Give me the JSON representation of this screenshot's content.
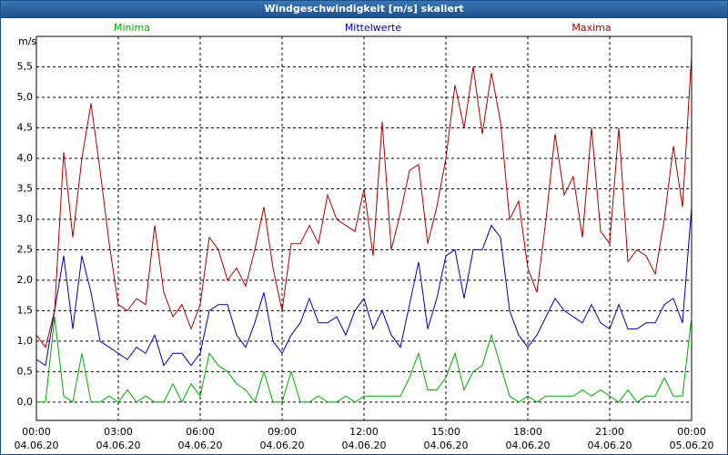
{
  "chart_data": {
    "type": "line",
    "title": "Windgeschwindigkeit [m/s] skaliert",
    "y_label": "m/s",
    "x": [
      "04.06.20 00:00",
      "04.06.20 00:20",
      "04.06.20 00:40",
      "04.06.20 01:00",
      "04.06.20 01:20",
      "04.06.20 01:40",
      "04.06.20 02:00",
      "04.06.20 02:20",
      "04.06.20 02:40",
      "04.06.20 03:00",
      "04.06.20 03:20",
      "04.06.20 03:40",
      "04.06.20 04:00",
      "04.06.20 04:20",
      "04.06.20 04:40",
      "04.06.20 05:00",
      "04.06.20 05:20",
      "04.06.20 05:40",
      "04.06.20 06:00",
      "04.06.20 06:20",
      "04.06.20 06:40",
      "04.06.20 07:00",
      "04.06.20 07:20",
      "04.06.20 07:40",
      "04.06.20 08:00",
      "04.06.20 08:20",
      "04.06.20 08:40",
      "04.06.20 09:00",
      "04.06.20 09:20",
      "04.06.20 09:40",
      "04.06.20 10:00",
      "04.06.20 10:20",
      "04.06.20 10:40",
      "04.06.20 11:00",
      "04.06.20 11:20",
      "04.06.20 11:40",
      "04.06.20 12:00",
      "04.06.20 12:20",
      "04.06.20 12:40",
      "04.06.20 13:00",
      "04.06.20 13:20",
      "04.06.20 13:40",
      "04.06.20 14:00",
      "04.06.20 14:20",
      "04.06.20 14:40",
      "04.06.20 15:00",
      "04.06.20 15:20",
      "04.06.20 15:40",
      "04.06.20 16:00",
      "04.06.20 16:20",
      "04.06.20 16:40",
      "04.06.20 17:00",
      "04.06.20 17:20",
      "04.06.20 17:40",
      "04.06.20 18:00",
      "04.06.20 18:20",
      "04.06.20 18:40",
      "04.06.20 19:00",
      "04.06.20 19:20",
      "04.06.20 19:40",
      "04.06.20 20:00",
      "04.06.20 20:20",
      "04.06.20 20:40",
      "04.06.20 21:00",
      "04.06.20 21:20",
      "04.06.20 21:40",
      "04.06.20 22:00",
      "04.06.20 22:20",
      "04.06.20 22:40",
      "04.06.20 23:00",
      "04.06.20 23:20",
      "04.06.20 23:40",
      "05.06.20 00:00"
    ],
    "series": [
      {
        "name": "Minima",
        "color": "#00aa00",
        "values": [
          0.0,
          0.0,
          1.4,
          0.1,
          0.0,
          0.8,
          0.0,
          0.0,
          0.1,
          0.0,
          0.2,
          0.0,
          0.1,
          0.0,
          0.0,
          0.3,
          0.0,
          0.3,
          0.1,
          0.8,
          0.6,
          0.5,
          0.3,
          0.2,
          0.0,
          0.5,
          0.0,
          0.0,
          0.5,
          0.0,
          0.0,
          0.1,
          0.0,
          0.0,
          0.1,
          0.0,
          0.1,
          0.1,
          0.1,
          0.1,
          0.1,
          0.4,
          0.8,
          0.2,
          0.2,
          0.4,
          0.8,
          0.2,
          0.5,
          0.6,
          1.1,
          0.6,
          0.1,
          0.0,
          0.1,
          0.0,
          0.1,
          0.1,
          0.1,
          0.1,
          0.2,
          0.1,
          0.2,
          0.1,
          0.0,
          0.2,
          0.0,
          0.1,
          0.1,
          0.4,
          0.1,
          0.1,
          1.4
        ]
      },
      {
        "name": "Mittelwerte",
        "color": "#0000aa",
        "values": [
          0.7,
          0.6,
          1.5,
          2.4,
          1.2,
          2.4,
          1.8,
          1.0,
          0.9,
          0.8,
          0.7,
          0.9,
          0.8,
          1.1,
          0.6,
          0.8,
          0.8,
          0.6,
          0.8,
          1.5,
          1.6,
          1.6,
          1.1,
          0.9,
          1.3,
          1.8,
          1.0,
          0.8,
          1.1,
          1.3,
          1.7,
          1.3,
          1.3,
          1.4,
          1.1,
          1.5,
          1.7,
          1.2,
          1.5,
          1.1,
          0.9,
          1.6,
          2.3,
          1.2,
          1.7,
          2.4,
          2.5,
          1.7,
          2.5,
          2.5,
          2.9,
          2.7,
          1.5,
          1.1,
          0.9,
          1.1,
          1.4,
          1.7,
          1.5,
          1.4,
          1.3,
          1.6,
          1.3,
          1.2,
          1.6,
          1.2,
          1.2,
          1.3,
          1.3,
          1.6,
          1.7,
          1.3,
          3.2
        ]
      },
      {
        "name": "Maxima",
        "color": "#aa0000",
        "values": [
          1.1,
          0.9,
          1.5,
          4.1,
          2.7,
          4.0,
          4.9,
          3.8,
          2.6,
          1.6,
          1.5,
          1.7,
          1.6,
          2.9,
          1.8,
          1.4,
          1.6,
          1.2,
          1.6,
          2.7,
          2.5,
          2.0,
          2.2,
          1.9,
          2.5,
          3.2,
          2.2,
          1.5,
          2.6,
          2.6,
          2.9,
          2.6,
          3.4,
          3.0,
          2.9,
          2.8,
          3.5,
          2.4,
          4.6,
          2.5,
          3.1,
          3.8,
          3.9,
          2.6,
          3.2,
          4.0,
          5.2,
          4.5,
          5.5,
          4.4,
          5.4,
          4.6,
          3.0,
          3.3,
          2.2,
          1.8,
          3.0,
          4.4,
          3.4,
          3.7,
          2.7,
          4.5,
          2.8,
          2.6,
          4.5,
          2.3,
          2.5,
          2.4,
          2.1,
          3.0,
          4.2,
          3.2,
          5.7
        ]
      }
    ],
    "xlim": [
      "04.06.20 00:00",
      "05.06.20 00:00"
    ],
    "xticks": [
      {
        "value": "04.06.20 00:00",
        "label": [
          "00:00",
          "04.06.20"
        ]
      },
      {
        "value": "04.06.20 03:00",
        "label": [
          "03:00",
          "04.06.20"
        ]
      },
      {
        "value": "04.06.20 06:00",
        "label": [
          "06:00",
          "04.06.20"
        ]
      },
      {
        "value": "04.06.20 09:00",
        "label": [
          "09:00",
          "04.06.20"
        ]
      },
      {
        "value": "04.06.20 12:00",
        "label": [
          "12:00",
          "04.06.20"
        ]
      },
      {
        "value": "04.06.20 15:00",
        "label": [
          "15:00",
          "04.06.20"
        ]
      },
      {
        "value": "04.06.20 18:00",
        "label": [
          "18:00",
          "04.06.20"
        ]
      },
      {
        "value": "04.06.20 21:00",
        "label": [
          "21:00",
          "04.06.20"
        ]
      },
      {
        "value": "05.06.20 00:00",
        "label": [
          "00:00",
          "05.06.20"
        ]
      }
    ],
    "ylim": [
      -0.3,
      6.0
    ],
    "yticks": [
      {
        "value": 0,
        "label": "0,0"
      },
      {
        "value": 0.5,
        "label": "0,5"
      },
      {
        "value": 1,
        "label": "1,0"
      },
      {
        "value": 1.5,
        "label": "1,5"
      },
      {
        "value": 2,
        "label": "2,0"
      },
      {
        "value": 2.5,
        "label": "2,5"
      },
      {
        "value": 3,
        "label": "3,0"
      },
      {
        "value": 3.5,
        "label": "3,5"
      },
      {
        "value": 4,
        "label": "4,0"
      },
      {
        "value": 4.5,
        "label": "4,5"
      },
      {
        "value": 5,
        "label": "5,0"
      },
      {
        "value": 5.5,
        "label": "5,5"
      }
    ],
    "grid": true
  }
}
